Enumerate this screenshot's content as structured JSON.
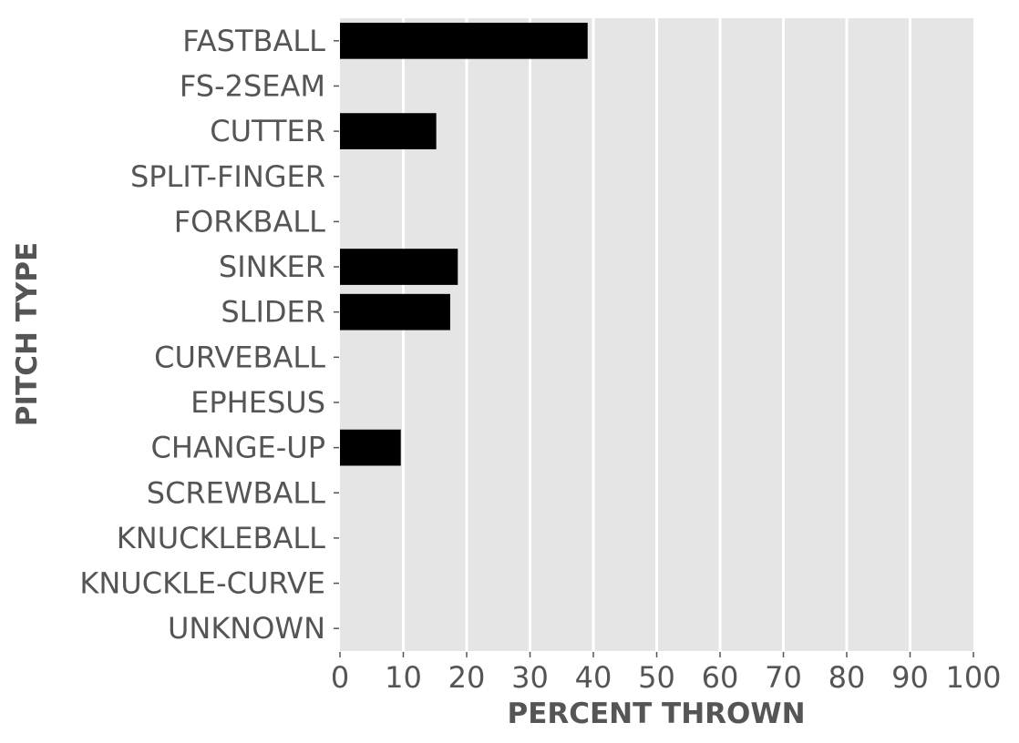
{
  "chart_data": {
    "type": "bar",
    "orientation": "horizontal",
    "title": "",
    "xlabel": "PERCENT THROWN",
    "ylabel": "PITCH TYPE",
    "xlim": [
      0,
      100
    ],
    "xticks": [
      0,
      10,
      20,
      30,
      40,
      50,
      60,
      70,
      80,
      90,
      100
    ],
    "grid": true,
    "categories": [
      "FASTBALL",
      "FS-2SEAM",
      "CUTTER",
      "SPLIT-FINGER",
      "FORKBALL",
      "SINKER",
      "SLIDER",
      "CURVEBALL",
      "EPHESUS",
      "CHANGE-UP",
      "SCREWBALL",
      "KNUCKLEBALL",
      "KNUCKLE-CURVE",
      "UNKNOWN"
    ],
    "values": [
      39.1,
      0,
      15.2,
      0,
      0,
      18.6,
      17.4,
      0,
      0,
      9.6,
      0,
      0,
      0,
      0
    ],
    "colors": {
      "bar": "#000000",
      "plot_background": "#e5e5e5",
      "grid": "#ffffff",
      "text": "#555555"
    }
  }
}
